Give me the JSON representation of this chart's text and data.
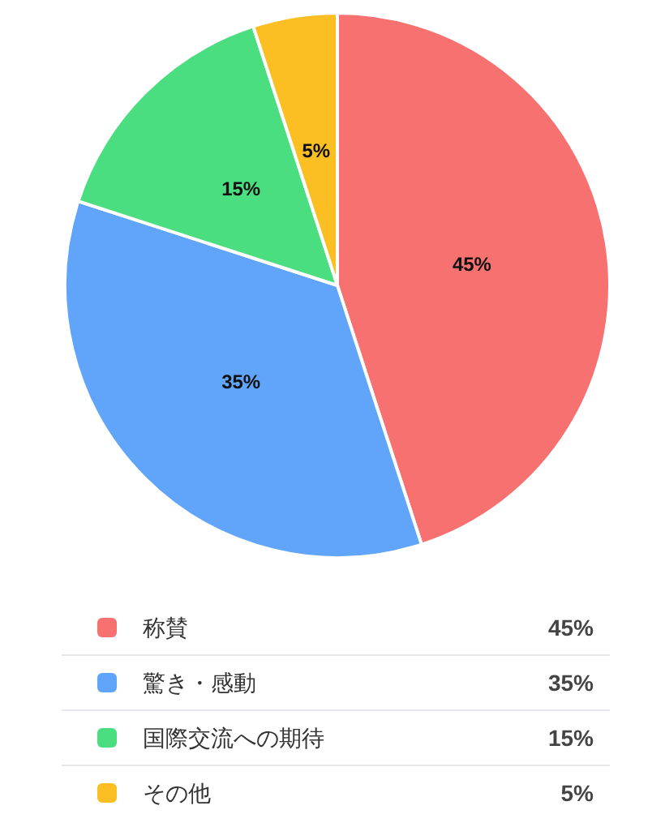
{
  "chart_data": {
    "type": "pie",
    "categories": [
      "称賛",
      "驚き・感動",
      "国際交流への期待",
      "その他"
    ],
    "values": [
      45,
      35,
      15,
      5
    ],
    "colors": [
      "#f87171",
      "#60a5fa",
      "#4ade80",
      "#fbbf24"
    ],
    "value_labels": [
      "45%",
      "35%",
      "15%",
      "5%"
    ],
    "legend": "bottom"
  }
}
